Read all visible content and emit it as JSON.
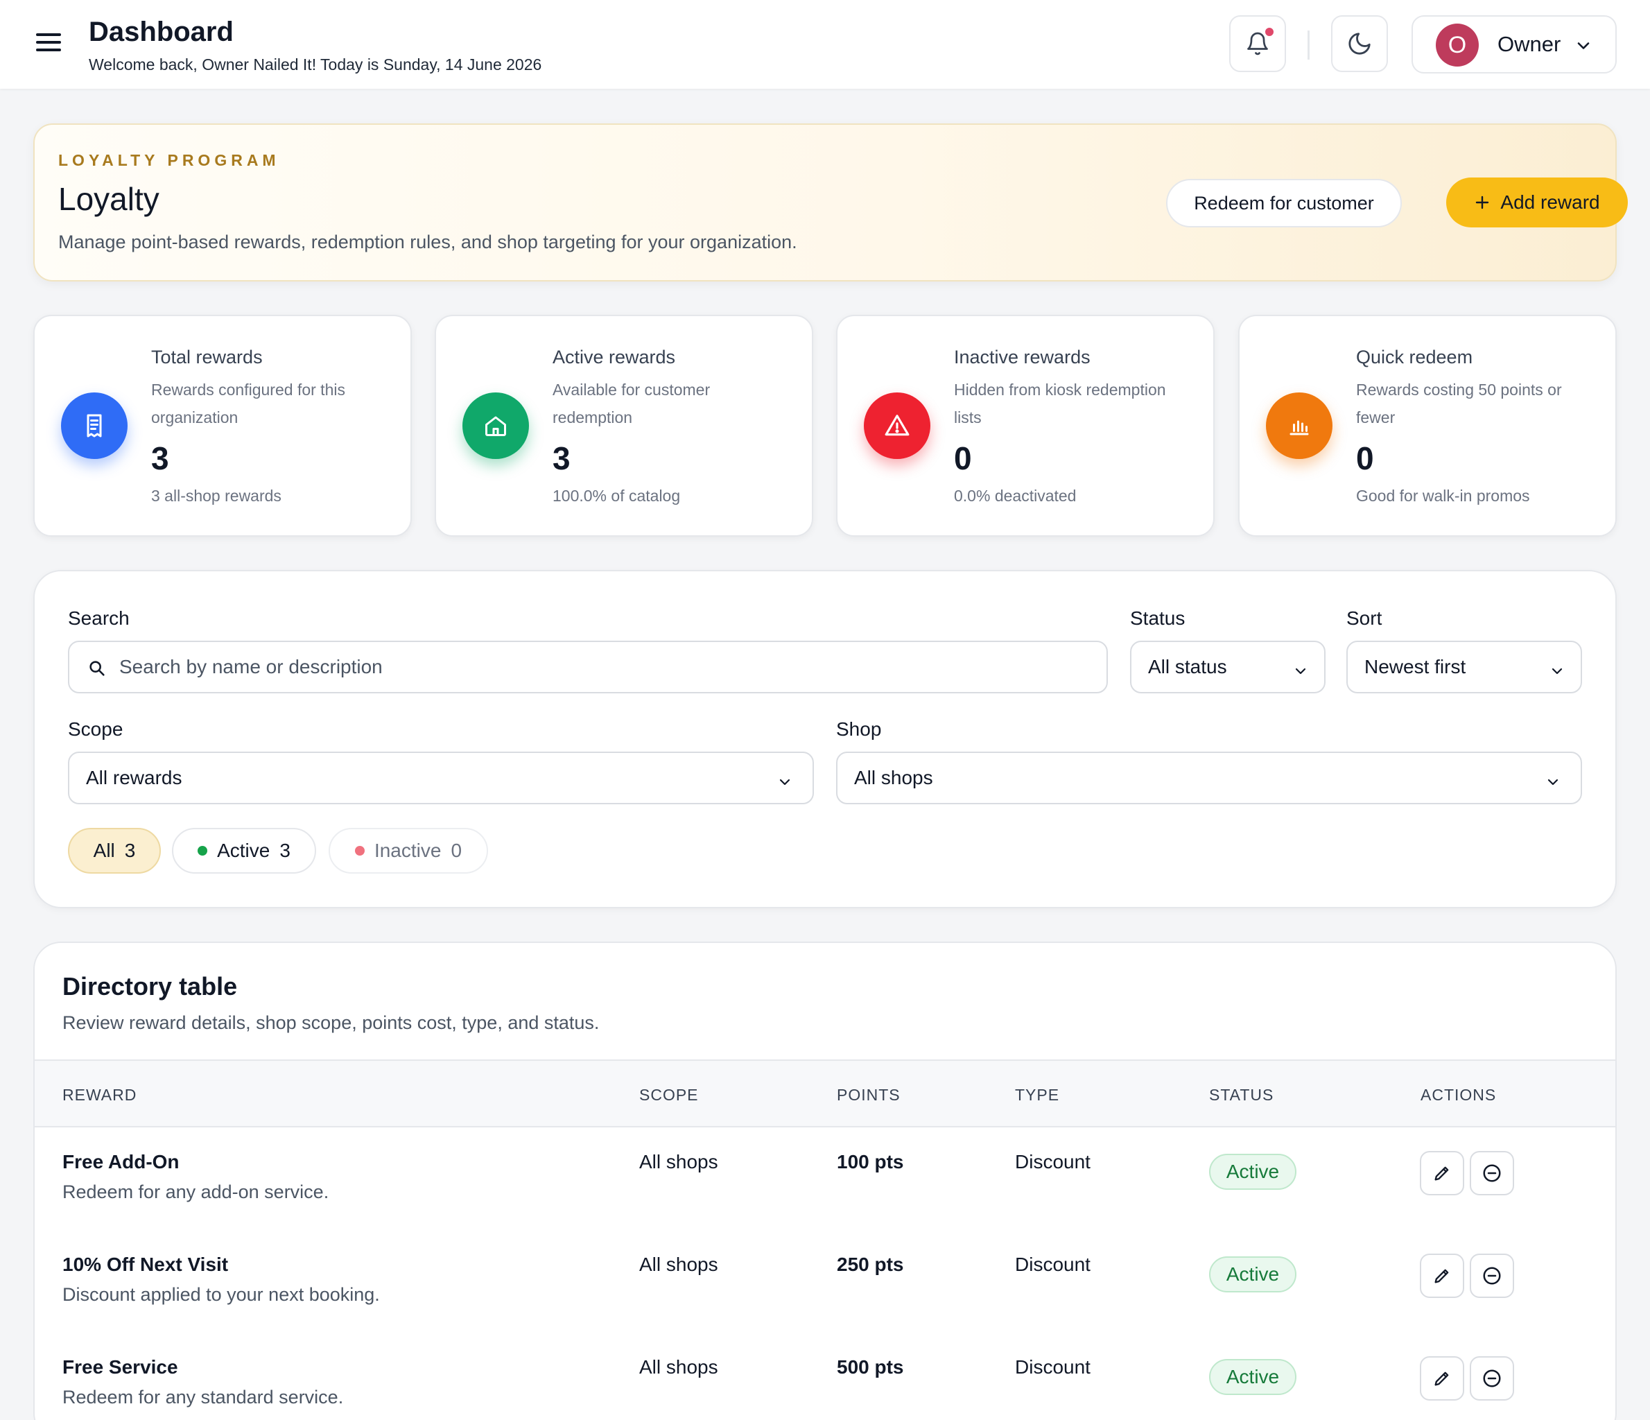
{
  "header": {
    "title": "Dashboard",
    "subtitle": "Welcome back, Owner Nailed It! Today is Sunday, 14 June 2026",
    "user": {
      "initial": "O",
      "name": "Owner"
    }
  },
  "hero": {
    "eyebrow": "LOYALTY PROGRAM",
    "title": "Loyalty",
    "description": "Manage point-based rewards, redemption rules, and shop targeting for your organization.",
    "redeem_label": "Redeem for customer",
    "add_label": "Add reward"
  },
  "stats": [
    {
      "title": "Total rewards",
      "description": "Rewards configured for this organization",
      "value": "3",
      "footnote": "3 all-shop rewards",
      "icon": "receipt-icon",
      "color": "#2f6cf6"
    },
    {
      "title": "Active rewards",
      "description": "Available for customer redemption",
      "value": "3",
      "footnote": "100.0% of catalog",
      "icon": "home-icon",
      "color": "#10a86a"
    },
    {
      "title": "Inactive rewards",
      "description": "Hidden from kiosk redemption lists",
      "value": "0",
      "footnote": "0.0% deactivated",
      "icon": "warning-icon",
      "color": "#ee2230"
    },
    {
      "title": "Quick redeem",
      "description": "Rewards costing 50 points or fewer",
      "value": "0",
      "footnote": "Good for walk-in promos",
      "icon": "bar-chart-icon",
      "color": "#f0790e"
    }
  ],
  "filters": {
    "search_label": "Search",
    "search_placeholder": "Search by name or description",
    "status_label": "Status",
    "status_value": "All status",
    "sort_label": "Sort",
    "sort_value": "Newest first",
    "scope_label": "Scope",
    "scope_value": "All rewards",
    "shop_label": "Shop",
    "shop_value": "All shops",
    "pills": {
      "all": {
        "label": "All",
        "count": "3"
      },
      "active": {
        "label": "Active",
        "count": "3"
      },
      "inactive": {
        "label": "Inactive",
        "count": "0"
      }
    }
  },
  "table": {
    "title": "Directory table",
    "description": "Review reward details, shop scope, points cost, type, and status.",
    "columns": [
      "REWARD",
      "SCOPE",
      "POINTS",
      "TYPE",
      "STATUS",
      "ACTIONS"
    ],
    "rows": [
      {
        "name": "Free Add-On",
        "description": "Redeem for any add-on service.",
        "scope": "All shops",
        "points": "100 pts",
        "type": "Discount",
        "status": "Active"
      },
      {
        "name": "10% Off Next Visit",
        "description": "Discount applied to your next booking.",
        "scope": "All shops",
        "points": "250 pts",
        "type": "Discount",
        "status": "Active"
      },
      {
        "name": "Free Service",
        "description": "Redeem for any standard service.",
        "scope": "All shops",
        "points": "500 pts",
        "type": "Discount",
        "status": "Active"
      }
    ]
  },
  "colors": {
    "accent": "#f8bc16",
    "active_green": "#167a3a",
    "inactive_red": "#f0717e",
    "avatar": "#be3b5c"
  }
}
